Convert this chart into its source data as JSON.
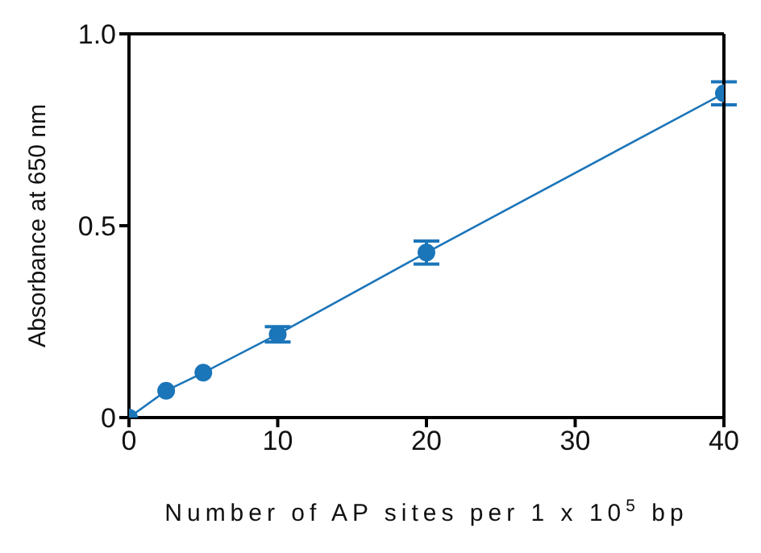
{
  "chart_data": {
    "type": "line",
    "xlabel": "Number of AP sites per 1 x 10$^{5}$ bp",
    "ylabel": "Absorbance at 650 nm",
    "x": [
      0,
      2.5,
      5,
      10,
      20,
      40
    ],
    "series": [
      {
        "color": "#1b75b9",
        "values": [
          0,
          0.07,
          0.117,
          0.217,
          0.43,
          0.845
        ],
        "errors": [
          null,
          null,
          null,
          0.02,
          0.03,
          0.03
        ]
      }
    ],
    "xlim": [
      0,
      40
    ],
    "xticks": [
      0,
      10,
      20,
      30,
      40
    ],
    "ylim": [
      0,
      1
    ],
    "yticks": [
      0,
      0.5,
      {
        "value": 1,
        "label": "1.0"
      }
    ],
    "marker": "circle",
    "line_style": "solid",
    "legend": false
  }
}
